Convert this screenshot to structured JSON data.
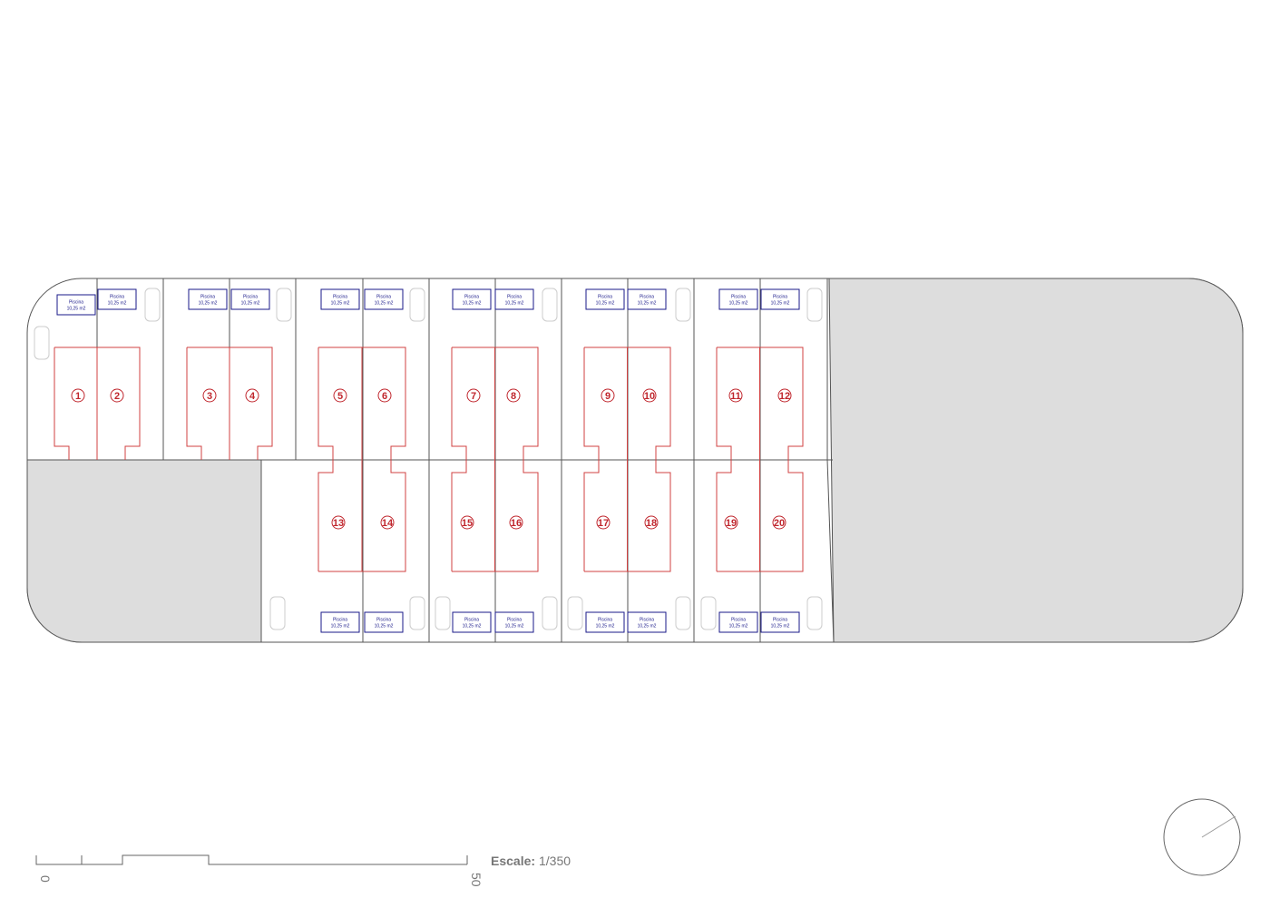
{
  "lots": [
    {
      "number": 1,
      "pool": {
        "label": "Piscina",
        "area": "10,25 m2"
      }
    },
    {
      "number": 2,
      "pool": {
        "label": "Piscina",
        "area": "10,25 m2"
      }
    },
    {
      "number": 3,
      "pool": {
        "label": "Piscina",
        "area": "10,25 m2"
      }
    },
    {
      "number": 4,
      "pool": {
        "label": "Piscina",
        "area": "10,25 m2"
      }
    },
    {
      "number": 5,
      "pool": {
        "label": "Piscina",
        "area": "10,25 m2"
      }
    },
    {
      "number": 6,
      "pool": {
        "label": "Piscina",
        "area": "10,25 m2"
      }
    },
    {
      "number": 7,
      "pool": {
        "label": "Piscina",
        "area": "10,25 m2"
      }
    },
    {
      "number": 8,
      "pool": {
        "label": "Piscina",
        "area": "10,25 m2"
      }
    },
    {
      "number": 9,
      "pool": {
        "label": "Piscina",
        "area": "10,25 m2"
      }
    },
    {
      "number": 10,
      "pool": {
        "label": "Piscina",
        "area": "10,25 m2"
      }
    },
    {
      "number": 11,
      "pool": {
        "label": "Piscina",
        "area": "10,25 m2"
      }
    },
    {
      "number": 12,
      "pool": {
        "label": "Piscina",
        "area": "10,25 m2"
      }
    },
    {
      "number": 13,
      "pool": {
        "label": "Piscina",
        "area": "10,25 m2"
      }
    },
    {
      "number": 14,
      "pool": {
        "label": "Piscina",
        "area": "10,25 m2"
      }
    },
    {
      "number": 15,
      "pool": {
        "label": "Piscina",
        "area": "10,25 m2"
      }
    },
    {
      "number": 16,
      "pool": {
        "label": "Piscina",
        "area": "10,25 m2"
      }
    },
    {
      "number": 17,
      "pool": {
        "label": "Piscina",
        "area": "10,25 m2"
      }
    },
    {
      "number": 18,
      "pool": {
        "label": "Piscina",
        "area": "10,25 m2"
      }
    },
    {
      "number": 19,
      "pool": {
        "label": "Piscina",
        "area": "10,25 m2"
      }
    },
    {
      "number": 20,
      "pool": {
        "label": "Piscina",
        "area": "10,25 m2"
      }
    }
  ],
  "scale": {
    "label": "Escale:",
    "ratio": "1/350",
    "start": "0",
    "end": "50"
  }
}
